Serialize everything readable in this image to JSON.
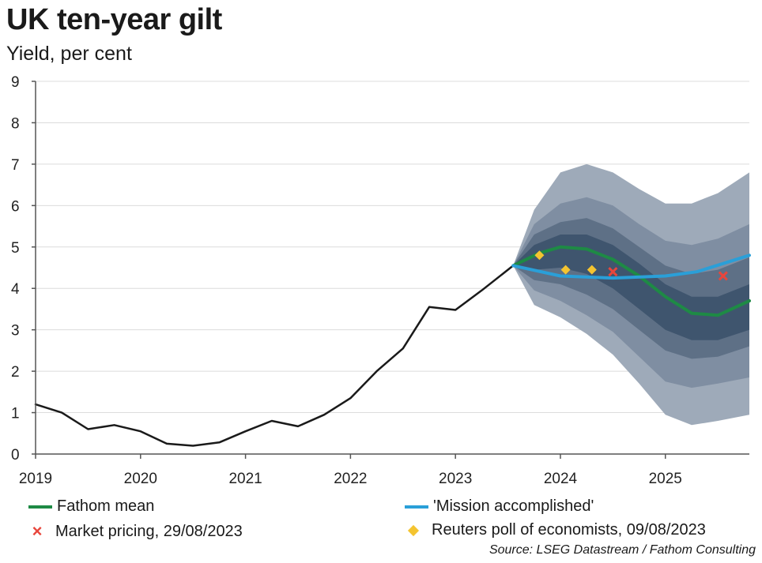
{
  "chart_data": {
    "type": "line",
    "title": "UK ten-year gilt",
    "subtitle": "Yield, per cent",
    "xlabel": "",
    "ylabel": "",
    "xlim": [
      2019,
      2025.8
    ],
    "ylim": [
      0,
      9
    ],
    "yticks": [
      "0",
      "1",
      "2",
      "3",
      "4",
      "5",
      "6",
      "7",
      "8",
      "9"
    ],
    "xticks": [
      {
        "value": 2019,
        "label": "2019"
      },
      {
        "value": 2020,
        "label": "2020"
      },
      {
        "value": 2021,
        "label": "2021"
      },
      {
        "value": 2022,
        "label": "2022"
      },
      {
        "value": 2023,
        "label": "2023"
      },
      {
        "value": 2024,
        "label": "2024"
      },
      {
        "value": 2025,
        "label": "2025"
      }
    ],
    "grid": "horizontal",
    "legend_placement": "bottom",
    "series": [
      {
        "name": "",
        "style": "history",
        "color": "#1a1a1a",
        "x": [
          2019,
          2019.25,
          2019.5,
          2019.75,
          2020,
          2020.25,
          2020.5,
          2020.75,
          2021,
          2021.25,
          2021.5,
          2021.75,
          2022,
          2022.25,
          2022.5,
          2022.75,
          2023,
          2023.25,
          2023.55
        ],
        "y": [
          1.2,
          1.0,
          0.6,
          0.7,
          0.55,
          0.25,
          0.2,
          0.28,
          0.55,
          0.8,
          0.67,
          0.95,
          1.35,
          2.0,
          2.55,
          3.55,
          3.48,
          3.95,
          4.55
        ]
      },
      {
        "name": "Fathom mean",
        "color": "#1e8a45",
        "x": [
          2023.55,
          2023.8,
          2024.0,
          2024.25,
          2024.5,
          2024.75,
          2025.0,
          2025.25,
          2025.5,
          2025.8
        ],
        "y": [
          4.55,
          4.85,
          5.0,
          4.95,
          4.7,
          4.3,
          3.8,
          3.4,
          3.35,
          3.7
        ]
      },
      {
        "name": "'Mission accomplished'",
        "color": "#2a9fd8",
        "x": [
          2023.55,
          2024.0,
          2024.5,
          2025.0,
          2025.3,
          2025.8
        ],
        "y": [
          4.55,
          4.3,
          4.25,
          4.3,
          4.4,
          4.8
        ]
      },
      {
        "name": "Market pricing, 29/08/2023",
        "marker": "x",
        "color": "#e8463c",
        "x": [
          2024.5,
          2025.55
        ],
        "y": [
          4.4,
          4.3
        ]
      },
      {
        "name": "Reuters poll of economists, 09/08/2023",
        "marker": "diamond",
        "color": "#f4c430",
        "x": [
          2023.8,
          2024.05,
          2024.3
        ],
        "y": [
          4.8,
          4.45,
          4.45
        ]
      }
    ],
    "fan_bands": {
      "x": [
        2023.55,
        2023.75,
        2024.0,
        2024.25,
        2024.5,
        2024.75,
        2025.0,
        2025.25,
        2025.5,
        2025.8
      ],
      "colors": [
        "#9eaab9",
        "#7f8ea2",
        "#5e7086",
        "#3f556e"
      ],
      "bands": [
        {
          "upper": [
            4.55,
            5.9,
            6.8,
            7.0,
            6.8,
            6.4,
            6.05,
            6.05,
            6.3,
            6.8
          ],
          "lower": [
            4.55,
            3.6,
            3.3,
            2.9,
            2.4,
            1.7,
            0.95,
            0.7,
            0.8,
            0.95
          ]
        },
        {
          "upper": [
            4.55,
            5.55,
            6.05,
            6.2,
            6.0,
            5.55,
            5.15,
            5.05,
            5.2,
            5.55
          ],
          "lower": [
            4.55,
            3.95,
            3.7,
            3.35,
            2.95,
            2.35,
            1.75,
            1.6,
            1.7,
            1.85
          ]
        },
        {
          "upper": [
            4.55,
            5.3,
            5.6,
            5.7,
            5.45,
            5.0,
            4.55,
            4.35,
            4.45,
            4.75
          ],
          "lower": [
            4.55,
            4.2,
            4.1,
            3.85,
            3.5,
            3.0,
            2.5,
            2.3,
            2.35,
            2.6
          ]
        },
        {
          "upper": [
            4.55,
            5.05,
            5.3,
            5.3,
            5.05,
            4.6,
            4.1,
            3.8,
            3.8,
            4.1
          ],
          "lower": [
            4.55,
            4.45,
            4.5,
            4.35,
            4.0,
            3.5,
            3.0,
            2.75,
            2.75,
            3.0
          ]
        }
      ]
    },
    "source": "Source: LSEG Datastream / Fathom Consulting"
  },
  "legend": {
    "fathom_mean": "Fathom mean",
    "mission": "'Mission accomplished'",
    "market": "Market pricing, 29/08/2023",
    "reuters": "Reuters poll of economists, 09/08/2023",
    "fathom_color": "#1e8a45",
    "mission_color": "#2a9fd8"
  }
}
